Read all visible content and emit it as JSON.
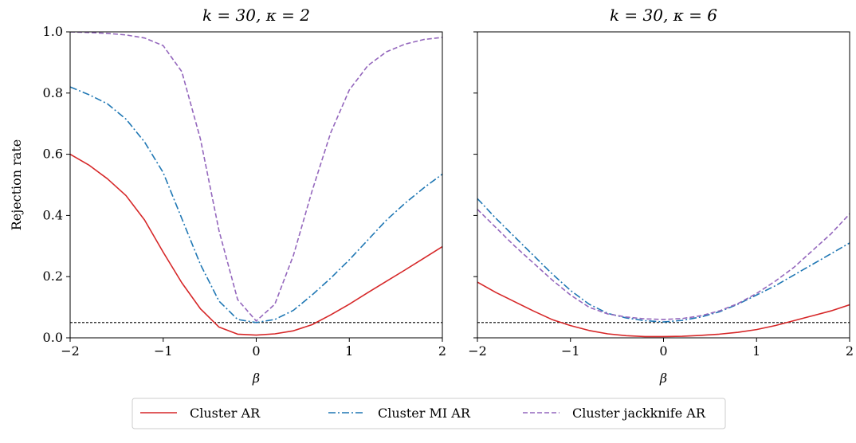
{
  "chart_data": [
    {
      "type": "line",
      "title": "k = 30, κ = 2",
      "xlabel": "β",
      "ylabel": "Rejection rate",
      "xlim": [
        -2,
        2
      ],
      "ylim": [
        0,
        1
      ],
      "xticks": [
        "−2",
        "−1",
        "0",
        "1",
        "2"
      ],
      "yticks": [
        "0.0",
        "0.2",
        "0.4",
        "0.6",
        "0.8",
        "1.0"
      ],
      "reference_line": 0.05,
      "x": [
        -2.0,
        -1.8,
        -1.6,
        -1.4,
        -1.2,
        -1.0,
        -0.8,
        -0.6,
        -0.4,
        -0.2,
        0.0,
        0.2,
        0.4,
        0.6,
        0.8,
        1.0,
        1.2,
        1.4,
        1.6,
        1.8,
        2.0
      ],
      "series": [
        {
          "name": "Cluster AR",
          "values": [
            0.6,
            0.565,
            0.52,
            0.465,
            0.385,
            0.28,
            0.18,
            0.095,
            0.035,
            0.012,
            0.009,
            0.013,
            0.023,
            0.043,
            0.075,
            0.11,
            0.148,
            0.185,
            0.222,
            0.26,
            0.298
          ]
        },
        {
          "name": "Cluster MI AR",
          "values": [
            0.82,
            0.795,
            0.765,
            0.715,
            0.64,
            0.54,
            0.39,
            0.24,
            0.12,
            0.06,
            0.05,
            0.06,
            0.09,
            0.14,
            0.195,
            0.255,
            0.32,
            0.385,
            0.44,
            0.49,
            0.535
          ]
        },
        {
          "name": "Cluster jackknife AR",
          "values": [
            1.0,
            0.998,
            0.995,
            0.99,
            0.98,
            0.955,
            0.87,
            0.65,
            0.35,
            0.125,
            0.055,
            0.11,
            0.27,
            0.48,
            0.67,
            0.81,
            0.89,
            0.935,
            0.96,
            0.975,
            0.982
          ]
        }
      ]
    },
    {
      "type": "line",
      "title": "k = 30, κ = 6",
      "xlabel": "β",
      "ylabel": "",
      "xlim": [
        -2,
        2
      ],
      "ylim": [
        0,
        1
      ],
      "xticks": [
        "−2",
        "−1",
        "0",
        "1",
        "2"
      ],
      "reference_line": 0.05,
      "x": [
        -2.0,
        -1.8,
        -1.6,
        -1.4,
        -1.2,
        -1.0,
        -0.8,
        -0.6,
        -0.4,
        -0.2,
        0.0,
        0.2,
        0.4,
        0.6,
        0.8,
        1.0,
        1.2,
        1.4,
        1.6,
        1.8,
        2.0
      ],
      "series": [
        {
          "name": "Cluster AR",
          "values": [
            0.182,
            0.148,
            0.118,
            0.088,
            0.06,
            0.04,
            0.024,
            0.013,
            0.007,
            0.004,
            0.004,
            0.005,
            0.008,
            0.012,
            0.018,
            0.027,
            0.04,
            0.056,
            0.072,
            0.088,
            0.108
          ]
        },
        {
          "name": "Cluster MI AR",
          "values": [
            0.455,
            0.39,
            0.33,
            0.27,
            0.21,
            0.155,
            0.11,
            0.08,
            0.065,
            0.056,
            0.052,
            0.057,
            0.068,
            0.085,
            0.11,
            0.14,
            0.17,
            0.205,
            0.24,
            0.275,
            0.31
          ]
        },
        {
          "name": "Cluster jackknife AR",
          "values": [
            0.42,
            0.36,
            0.3,
            0.245,
            0.19,
            0.14,
            0.1,
            0.078,
            0.068,
            0.062,
            0.06,
            0.063,
            0.072,
            0.088,
            0.112,
            0.145,
            0.185,
            0.23,
            0.285,
            0.34,
            0.405
          ]
        }
      ]
    }
  ],
  "legend": {
    "placement": "bottom-center",
    "entries": [
      "Cluster AR",
      "Cluster MI AR",
      "Cluster jackknife AR"
    ]
  },
  "colors": {
    "Cluster AR": "#d62728",
    "Cluster MI AR": "#1f77b4",
    "Cluster jackknife AR": "#9467bd",
    "reference_line": "#000000"
  }
}
